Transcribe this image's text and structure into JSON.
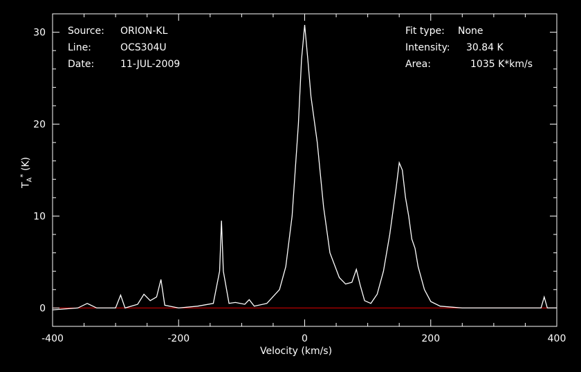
{
  "header": {
    "source_label": "Source:",
    "source_value": "ORION-KL",
    "line_label": "Line:",
    "line_value": "OCS304U",
    "date_label": "Date:",
    "date_value": "11-JUL-2009",
    "fit_label": "Fit type:",
    "fit_value": "None",
    "intensity_label": "Intensity:",
    "intensity_value": "30.84 K",
    "area_label": "Area:",
    "area_value": "1035 K*km/s"
  },
  "colors": {
    "background": "#000000",
    "axes": "#ffffff",
    "spectrum": "#ffffff",
    "baseline": "#e00000"
  },
  "chart_data": {
    "type": "line",
    "xlabel": "Velocity (km/s)",
    "ylabel_main": "T",
    "ylabel_sub": "A",
    "ylabel_sup": "*",
    "ylabel_unit": " (K)",
    "xlim": [
      -400,
      400
    ],
    "ylim": [
      -2,
      32
    ],
    "xticks": [
      -400,
      -200,
      0,
      200,
      400
    ],
    "yticks": [
      0,
      10,
      20,
      30
    ],
    "baseline_y": 0,
    "series": [
      {
        "x": [
          -400,
          -360,
          -345,
          -330,
          -300,
          -292,
          -285,
          -265,
          -255,
          -245,
          -235,
          -228,
          -222,
          -200,
          -170,
          -145,
          -135,
          -132,
          -129,
          -120,
          -110,
          -95,
          -88,
          -80,
          -60,
          -40,
          -30,
          -20,
          -10,
          -5,
          0,
          5,
          10,
          20,
          30,
          40,
          55,
          65,
          75,
          82,
          88,
          95,
          105,
          115,
          125,
          135,
          145,
          150,
          155,
          160,
          165,
          170,
          175,
          180,
          190,
          200,
          215,
          250,
          300,
          350,
          375,
          380,
          385,
          400
        ],
        "y": [
          -0.2,
          0,
          0.5,
          0,
          0,
          1.4,
          0,
          0.4,
          1.5,
          0.8,
          1.2,
          3.1,
          0.3,
          0,
          0.2,
          0.5,
          4,
          9.5,
          4,
          0.5,
          0.6,
          0.4,
          0.9,
          0.2,
          0.5,
          2,
          4.5,
          10,
          20,
          27,
          30.8,
          27,
          23,
          18,
          11,
          6,
          3.3,
          2.6,
          2.8,
          4.2,
          2.5,
          0.8,
          0.5,
          1.5,
          4,
          8,
          13,
          15.8,
          15,
          12,
          10,
          7.5,
          6.5,
          4.5,
          2,
          0.7,
          0.2,
          0,
          0,
          0,
          0,
          1.2,
          0,
          0
        ]
      }
    ]
  }
}
